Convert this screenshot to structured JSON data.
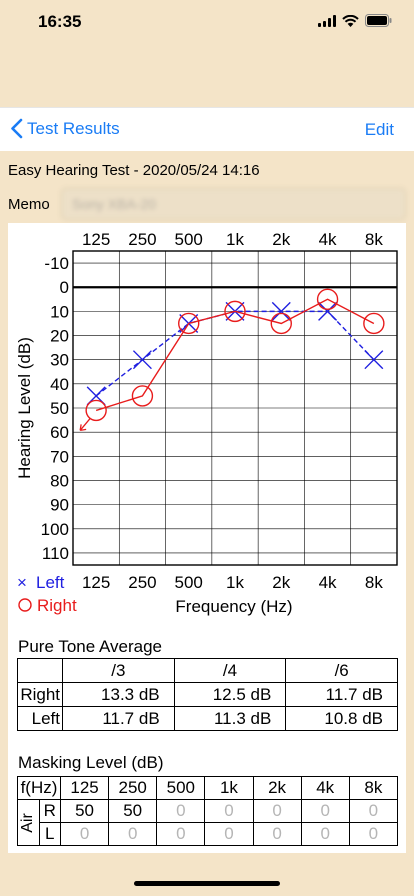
{
  "status_bar": {
    "time": "16:35"
  },
  "navbar": {
    "back_label": "Test Results",
    "edit_label": "Edit"
  },
  "test": {
    "title": "Easy Hearing Test - 2020/05/24 14:16"
  },
  "memo": {
    "label": "Memo",
    "value": "Sony XBA-20"
  },
  "audiogram": {
    "freq_labels": [
      "125",
      "250",
      "500",
      "1k",
      "2k",
      "4k",
      "8k"
    ],
    "level_labels": [
      "-10",
      "0",
      "10",
      "20",
      "30",
      "40",
      "50",
      "60",
      "70",
      "80",
      "90",
      "100",
      "110"
    ],
    "ylabel": "Hearing Level (dB)",
    "xlabel": "Frequency (Hz)",
    "legend_left": "Left",
    "legend_right": "Right",
    "left_symbol": "×",
    "right_symbol": "○",
    "colors": {
      "left": "#1f1fe0",
      "right": "#e81c1c"
    }
  },
  "chart_data": {
    "type": "line",
    "categories": [
      "125",
      "250",
      "500",
      "1k",
      "2k",
      "4k",
      "8k"
    ],
    "series": [
      {
        "name": "Left",
        "values": [
          45,
          30,
          15,
          10,
          10,
          10,
          30
        ],
        "marker": "x",
        "line": "dashed",
        "color": "#1f1fe0"
      },
      {
        "name": "Right",
        "values": [
          51,
          45,
          15,
          10,
          15,
          5,
          15
        ],
        "marker": "o",
        "line": "solid",
        "color": "#e81c1c"
      }
    ],
    "right_125_out_of_range": true,
    "xlabel": "Frequency (Hz)",
    "ylabel": "Hearing Level (dB)",
    "ylim": [
      -10,
      110
    ],
    "y_inverted": true,
    "grid": true
  },
  "pta": {
    "title": "Pure Tone Average",
    "headers": [
      "/3",
      "/4",
      "/6"
    ],
    "rows": [
      {
        "label": "Right",
        "values": [
          "13.3 dB",
          "12.5 dB",
          "11.7 dB"
        ]
      },
      {
        "label": "Left",
        "values": [
          "11.7 dB",
          "11.3 dB",
          "10.8 dB"
        ]
      }
    ]
  },
  "masking": {
    "title": "Masking Level (dB)",
    "freq_header": "f(Hz)",
    "freqs": [
      "125",
      "250",
      "500",
      "1k",
      "2k",
      "4k",
      "8k"
    ],
    "air_label": "Air",
    "rows": [
      {
        "label": "R",
        "values": [
          "50",
          "50",
          "0",
          "0",
          "0",
          "0",
          "0"
        ]
      },
      {
        "label": "L",
        "values": [
          "0",
          "0",
          "0",
          "0",
          "0",
          "0",
          "0"
        ]
      }
    ]
  }
}
